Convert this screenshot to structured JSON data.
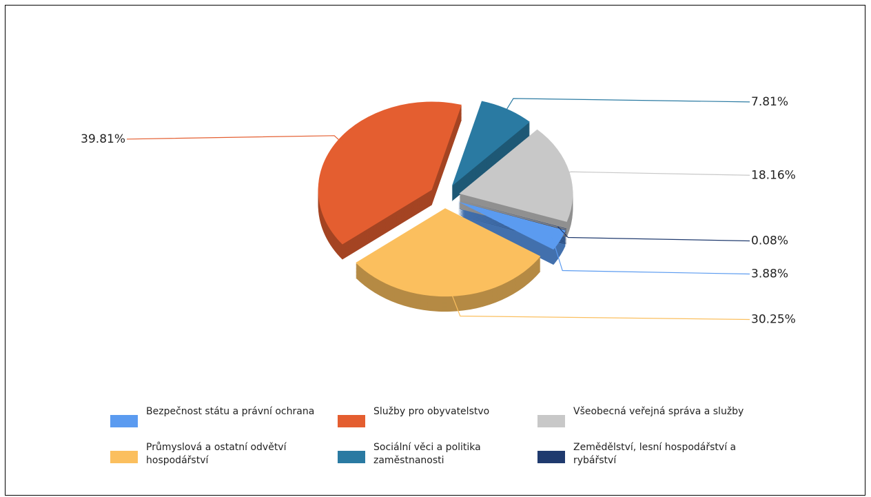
{
  "chart_data": {
    "type": "pie",
    "categories": [
      "Bezpečnost státu a právní ochrana",
      "Průmyslová a ostatní odvětví hospodářství",
      "Služby pro obyvatelstvo",
      "Sociální věci a politika zaměstnanosti",
      "Všeobecná veřejná správa a služby",
      "Zemědělství, lesní hospodářství a rybářství"
    ],
    "values": [
      3.88,
      30.25,
      39.81,
      7.81,
      18.16,
      0.08
    ],
    "value_labels": [
      "3.88%",
      "30.25%",
      "39.81%",
      "7.81%",
      "18.16%",
      "0.08%"
    ],
    "colors": [
      "#5b9bf0",
      "#fbbf5e",
      "#e45e30",
      "#2a7aa2",
      "#c8c8c8",
      "#1f3a6e"
    ],
    "legend": "bottom"
  }
}
